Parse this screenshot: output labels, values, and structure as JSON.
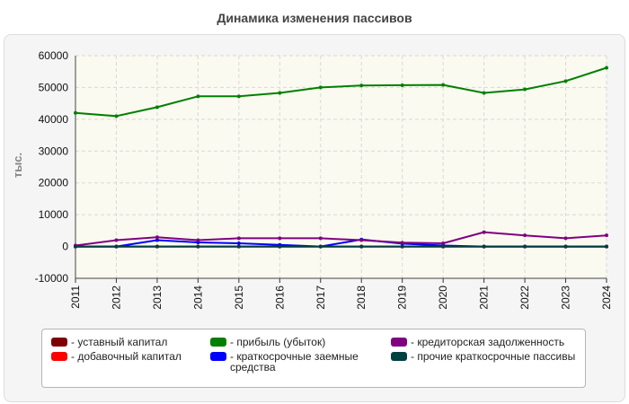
{
  "chart_data": {
    "type": "line",
    "title": "Динамика изменения пассивов",
    "ylabel": "тыс.",
    "xlabel": "",
    "ylim": [
      -10000,
      60000
    ],
    "yticks": [
      -10000,
      0,
      10000,
      20000,
      30000,
      40000,
      50000,
      60000
    ],
    "x": [
      "2011",
      "2012",
      "2013",
      "2014",
      "2015",
      "2016",
      "2017",
      "2018",
      "2019",
      "2020",
      "2021",
      "2022",
      "2023",
      "2024"
    ],
    "grid": true,
    "legend_position": "bottom",
    "series": [
      {
        "name": "уставный капитал",
        "color": "#800000",
        "values": [
          0,
          0,
          0,
          0,
          0,
          0,
          0,
          0,
          0,
          0,
          0,
          0,
          0,
          0
        ]
      },
      {
        "name": "добавочный капитал",
        "color": "#ff0000",
        "values": [
          0,
          0,
          0,
          0,
          0,
          0,
          0,
          0,
          0,
          0,
          0,
          0,
          0,
          0
        ]
      },
      {
        "name": "прибыль (убыток)",
        "color": "#008000",
        "values": [
          42000,
          41000,
          43800,
          47200,
          47200,
          48300,
          50000,
          50600,
          50700,
          50800,
          48300,
          49400,
          52000,
          56200
        ]
      },
      {
        "name": "краткосрочные заемные средства",
        "color": "#0000ff",
        "values": [
          0,
          0,
          2000,
          1300,
          1000,
          500,
          0,
          2200,
          900,
          300,
          0,
          0,
          0,
          0
        ]
      },
      {
        "name": "кредиторская задолженность",
        "color": "#800080",
        "values": [
          300,
          2000,
          2900,
          2000,
          2600,
          2600,
          2600,
          2000,
          1200,
          1000,
          4500,
          3500,
          2600,
          3500
        ]
      },
      {
        "name": "прочие краткосрочные пассивы",
        "color": "#004040",
        "values": [
          0,
          0,
          0,
          0,
          0,
          0,
          0,
          0,
          0,
          0,
          0,
          0,
          0,
          0
        ]
      }
    ]
  }
}
